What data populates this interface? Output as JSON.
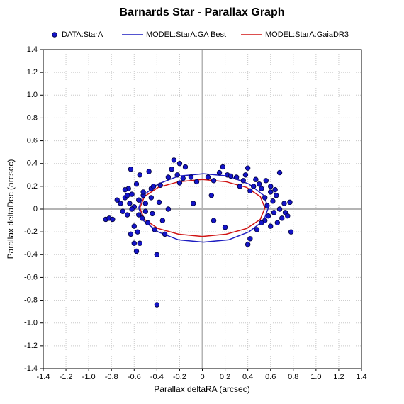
{
  "chart_data": {
    "type": "scatter",
    "title": "Barnards Star - Parallax Graph",
    "x_label": "Parallax deltaRA (arcsec)",
    "y_label": "Parallax deltaDec (arcsec)",
    "grid": true,
    "xlim": [
      -1.4,
      1.4
    ],
    "ylim": [
      -1.4,
      1.4
    ],
    "xticks": [
      -1.4,
      -1.2,
      {
        "value": -1,
        "label": "-1.0"
      },
      -0.8,
      -0.6,
      -0.4,
      -0.2,
      0,
      0.2,
      0.4,
      0.6,
      0.8,
      {
        "value": 1,
        "label": "1.0"
      },
      1.2,
      1.4
    ],
    "yticks": [
      -1.4,
      -1.2,
      {
        "value": -1,
        "label": "-1.0"
      },
      -0.8,
      -0.6,
      -0.4,
      -0.2,
      0,
      0.2,
      0.4,
      0.6,
      0.8,
      {
        "value": 1,
        "label": "1.0"
      },
      1.2,
      1.4
    ],
    "series": [
      {
        "name": "DATA:StarA",
        "type": "scatter",
        "color": "#1414c8",
        "x": [
          -0.85,
          -0.82,
          -0.79,
          -0.75,
          -0.72,
          -0.7,
          -0.68,
          -0.66,
          -0.65,
          -0.63,
          -0.62,
          -0.6,
          -0.6,
          -0.58,
          -0.57,
          -0.56,
          -0.55,
          -0.55,
          -0.53,
          -0.52,
          -0.5,
          -0.5,
          -0.48,
          -0.47,
          -0.45,
          -0.44,
          -0.43,
          -0.42,
          -0.4,
          -0.4,
          -0.38,
          -0.37,
          -0.35,
          -0.33,
          -0.3,
          -0.3,
          -0.27,
          -0.25,
          -0.22,
          -0.2,
          -0.17,
          -0.15,
          -0.1,
          -0.05,
          0.05,
          0.08,
          -0.08,
          0.1,
          0.1,
          0.15,
          0.18,
          0.2,
          0.22,
          0.25,
          0.3,
          0.33,
          0.36,
          0.38,
          0.4,
          0.42,
          0.45,
          0.47,
          0.5,
          0.52,
          0.55,
          0.55,
          0.57,
          0.58,
          0.6,
          0.6,
          0.62,
          0.63,
          0.65,
          0.66,
          0.68,
          0.68,
          0.7,
          0.72,
          0.73,
          0.75,
          0.77,
          0.78,
          0.4,
          0.42,
          0.48,
          -0.68,
          -0.63,
          -0.6,
          -0.58,
          -0.52,
          -0.62,
          -0.64,
          -0.66,
          -0.56,
          0.52,
          0.56,
          0.6,
          0.64,
          -0.45,
          -0.2
        ],
        "values": [
          -0.09,
          -0.08,
          -0.09,
          0.08,
          0.05,
          -0.02,
          0.1,
          -0.05,
          0.18,
          0.35,
          0.13,
          0.02,
          -0.15,
          0.22,
          -0.2,
          0.08,
          -0.3,
          0.3,
          -0.08,
          0.12,
          -0.02,
          0.05,
          -0.12,
          0.33,
          0.18,
          -0.04,
          0.2,
          -0.18,
          -0.4,
          -0.84,
          0.06,
          0.21,
          -0.1,
          -0.22,
          0.28,
          0.0,
          0.35,
          0.43,
          0.3,
          0.4,
          0.27,
          0.37,
          0.28,
          0.24,
          0.28,
          0.12,
          0.05,
          -0.1,
          0.25,
          0.32,
          0.37,
          -0.16,
          0.3,
          0.29,
          0.28,
          0.2,
          0.25,
          0.3,
          0.36,
          0.16,
          0.2,
          0.26,
          0.22,
          0.18,
          0.1,
          -0.1,
          0.03,
          -0.06,
          0.15,
          -0.15,
          0.07,
          -0.03,
          0.12,
          -0.12,
          0.32,
          0.0,
          -0.08,
          0.05,
          -0.03,
          -0.06,
          0.06,
          -0.2,
          -0.31,
          -0.26,
          -0.18,
          0.17,
          -0.22,
          -0.3,
          -0.37,
          0.15,
          0.0,
          0.05,
          0.12,
          -0.05,
          -0.12,
          0.25,
          0.2,
          0.17,
          0.1,
          0.23
        ]
      },
      {
        "name": "MODEL:StarA:GA Best",
        "type": "line",
        "color": "#1c1cc0",
        "x": [
          0.58,
          0.54,
          0.41,
          0.23,
          0.01,
          -0.21,
          -0.39,
          -0.52,
          -0.56,
          -0.52,
          -0.39,
          -0.21,
          0.01,
          0.23,
          0.41,
          0.54,
          0.58
        ],
        "values": [
          0.01,
          0.12,
          0.22,
          0.29,
          0.31,
          0.29,
          0.22,
          0.12,
          0.01,
          -0.1,
          -0.2,
          -0.27,
          -0.29,
          -0.27,
          -0.2,
          -0.1,
          0.01
        ]
      },
      {
        "name": "MODEL:StarA:GaiaDR3",
        "type": "line",
        "color": "#d01414",
        "x": [
          0.55,
          0.51,
          0.39,
          0.21,
          0,
          -0.21,
          -0.39,
          -0.51,
          -0.55,
          -0.51,
          -0.39,
          -0.21,
          0,
          0.21,
          0.39,
          0.51,
          0.55
        ],
        "values": [
          0.01,
          0.11,
          0.19,
          0.24,
          0.26,
          0.24,
          0.19,
          0.11,
          0.01,
          -0.09,
          -0.17,
          -0.22,
          -0.24,
          -0.22,
          -0.17,
          -0.09,
          0.01
        ]
      }
    ]
  }
}
